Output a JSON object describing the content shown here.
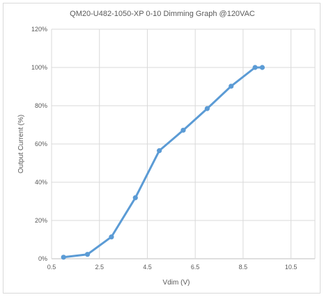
{
  "chart_data": {
    "type": "line",
    "title": "QM20-U482-1050-XP 0-10 Dimming Graph @120VAC",
    "xlabel": "Vdim (V)",
    "ylabel": "Output Current (%)",
    "xlim": [
      0.5,
      11.5
    ],
    "ylim": [
      0,
      120
    ],
    "xticks": [
      0.5,
      2.5,
      4.5,
      6.5,
      8.5,
      10.5
    ],
    "xtick_labels": [
      "0.5",
      "2.5",
      "4.5",
      "6.5",
      "8.5",
      "10.5"
    ],
    "yticks": [
      0,
      20,
      40,
      60,
      80,
      100,
      120
    ],
    "ytick_labels": [
      "0%",
      "20%",
      "40%",
      "60%",
      "80%",
      "100%",
      "120%"
    ],
    "grid": true,
    "legend": false,
    "series": [
      {
        "color": "#5b9bd5",
        "x": [
          1,
          2,
          3,
          4,
          5,
          6,
          7,
          8,
          9,
          9.3
        ],
        "y": [
          0.8,
          2.3,
          11.4,
          31.9,
          56.5,
          67.2,
          78.5,
          90.2,
          100,
          100
        ]
      }
    ]
  }
}
